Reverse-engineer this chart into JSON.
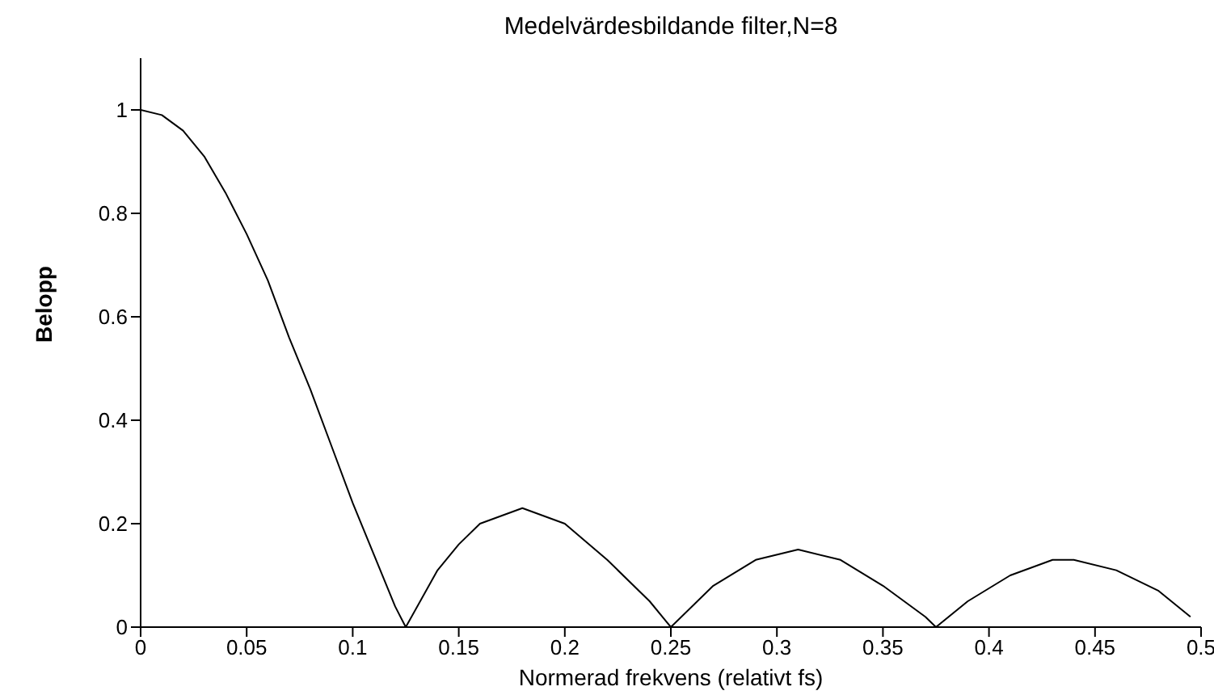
{
  "chart_data": {
    "type": "line",
    "title": "Medelvärdesbildande filter,N=8",
    "xlabel": "Normerad frekvens (relativt fs)",
    "ylabel": "Belopp",
    "x": [
      0,
      0.01,
      0.02,
      0.03,
      0.04,
      0.05,
      0.06,
      0.07,
      0.08,
      0.09,
      0.1,
      0.11,
      0.12,
      0.125,
      0.14,
      0.15,
      0.16,
      0.18,
      0.2,
      0.22,
      0.24,
      0.25,
      0.27,
      0.29,
      0.31,
      0.33,
      0.35,
      0.37,
      0.375,
      0.39,
      0.41,
      0.43,
      0.44,
      0.46,
      0.48,
      0.495
    ],
    "series": [
      {
        "color": "#000000",
        "values": [
          1,
          0.99,
          0.96,
          0.91,
          0.84,
          0.76,
          0.67,
          0.56,
          0.46,
          0.35,
          0.24,
          0.14,
          0.04,
          0,
          0.11,
          0.16,
          0.2,
          0.23,
          0.2,
          0.13,
          0.05,
          0,
          0.08,
          0.13,
          0.15,
          0.13,
          0.08,
          0.02,
          0,
          0.05,
          0.1,
          0.13,
          0.13,
          0.11,
          0.07,
          0.02
        ]
      }
    ],
    "xlim": [
      0,
      0.5
    ],
    "xticks": [
      0,
      0.05,
      0.1,
      0.15,
      0.2,
      0.25,
      0.3,
      0.35,
      0.4,
      0.45,
      0.5
    ],
    "ylim": [
      0,
      1.1
    ],
    "yticks": [
      0,
      0.2,
      0.4,
      0.6,
      0.8,
      1
    ],
    "grid": false,
    "marker": "none",
    "line_style": "solid"
  }
}
